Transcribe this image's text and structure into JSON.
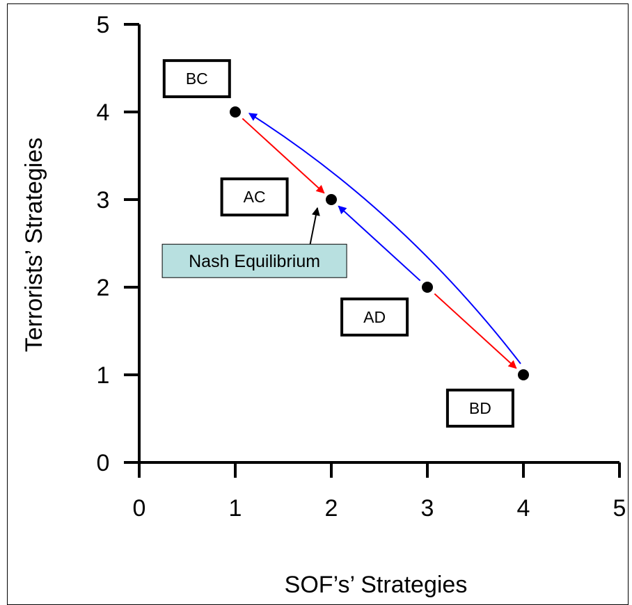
{
  "chart_data": {
    "type": "scatter",
    "title": "",
    "xlabel": "SOF’s’ Strategies",
    "ylabel": "Terrorists’ Strategies",
    "xlim": [
      0,
      5
    ],
    "ylim": [
      0,
      5
    ],
    "x_ticks": [
      "0",
      "1",
      "2",
      "3",
      "4",
      "5"
    ],
    "y_ticks": [
      "0",
      "1",
      "2",
      "3",
      "4",
      "5"
    ],
    "grid": false,
    "points": [
      {
        "x": 1,
        "y": 4
      },
      {
        "x": 2,
        "y": 3
      },
      {
        "x": 3,
        "y": 2
      },
      {
        "x": 4,
        "y": 1
      }
    ],
    "arrows": [
      {
        "from": [
          1,
          4
        ],
        "to": [
          2,
          3
        ],
        "color": "#ff0000"
      },
      {
        "from": [
          3,
          2
        ],
        "to": [
          4,
          1
        ],
        "color": "#ff0000"
      },
      {
        "from": [
          3,
          2
        ],
        "to": [
          2,
          3
        ],
        "color": "#0000ff"
      },
      {
        "from": [
          4,
          1
        ],
        "to": [
          1,
          4
        ],
        "color": "#0000ff",
        "curved": true
      }
    ],
    "strategy_labels": [
      {
        "text": "BC",
        "x": 0.6,
        "y": 4.38
      },
      {
        "text": "AC",
        "x": 1.2,
        "y": 3.03
      },
      {
        "text": "AD",
        "x": 2.45,
        "y": 1.66
      },
      {
        "text": "BD",
        "x": 3.55,
        "y": 0.62
      }
    ],
    "annotation": {
      "text": "Nash Equilibrium",
      "x": 1.2,
      "y": 2.3,
      "points_to": [
        2,
        3
      ],
      "background": "#b8e0e0"
    }
  }
}
